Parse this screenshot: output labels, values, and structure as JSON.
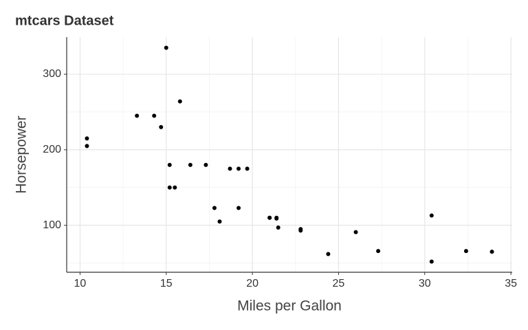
{
  "chart_data": {
    "type": "scatter",
    "title": "mtcars Dataset",
    "x_label": "Miles per Gallon",
    "y_label": "Horsepower",
    "x": [
      21.0,
      21.0,
      22.8,
      21.4,
      18.7,
      18.1,
      14.3,
      24.4,
      22.8,
      19.2,
      17.8,
      16.4,
      17.3,
      15.2,
      10.4,
      10.4,
      14.7,
      32.4,
      30.4,
      33.9,
      21.5,
      15.5,
      15.2,
      13.3,
      19.2,
      27.3,
      26.0,
      30.4,
      15.8,
      19.7,
      15.0,
      21.4
    ],
    "values": [
      110,
      110,
      93,
      110,
      175,
      105,
      245,
      62,
      95,
      123,
      123,
      180,
      180,
      180,
      205,
      215,
      230,
      66,
      52,
      65,
      97,
      150,
      150,
      245,
      175,
      66,
      91,
      113,
      264,
      175,
      335,
      109
    ],
    "color": "#000000",
    "xlim": [
      9.225,
      35.075
    ],
    "xticks": [
      10,
      15,
      20,
      25,
      30,
      35
    ],
    "xminorticks": [
      12.5,
      17.5,
      22.5,
      27.5,
      32.5
    ],
    "ylim": [
      37.85,
      349.15
    ],
    "yticks": [
      100,
      200,
      300
    ],
    "yminorticks": [
      50,
      150,
      250
    ],
    "grid": true
  }
}
